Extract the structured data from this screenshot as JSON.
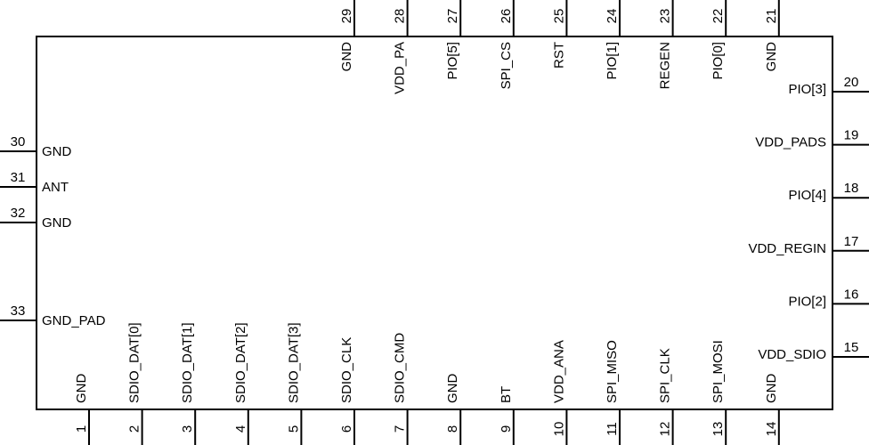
{
  "bottom_pins": [
    {
      "number": 1,
      "label": "GND"
    },
    {
      "number": 2,
      "label": "SDIO_DAT[0]"
    },
    {
      "number": 3,
      "label": "SDIO_DAT[1]"
    },
    {
      "number": 4,
      "label": "SDIO_DAT[2]"
    },
    {
      "number": 5,
      "label": "SDIO_DAT[3]"
    },
    {
      "number": 6,
      "label": "SDIO_CLK"
    },
    {
      "number": 7,
      "label": "SDIO_CMD"
    },
    {
      "number": 8,
      "label": "GND"
    },
    {
      "number": 9,
      "label": "BT"
    },
    {
      "number": 10,
      "label": "VDD_ANA"
    },
    {
      "number": 11,
      "label": "SPI_MISO"
    },
    {
      "number": 12,
      "label": "SPI_CLK"
    },
    {
      "number": 13,
      "label": "SPI_MOSI"
    },
    {
      "number": 14,
      "label": "GND"
    }
  ],
  "right_pins": [
    {
      "number": 15,
      "label": "VDD_SDIO"
    },
    {
      "number": 16,
      "label": "PIO[2]"
    },
    {
      "number": 17,
      "label": "VDD_REGIN"
    },
    {
      "number": 18,
      "label": "PIO[4]"
    },
    {
      "number": 19,
      "label": "VDD_PADS"
    },
    {
      "number": 20,
      "label": "PIO[3]"
    }
  ],
  "top_pins": [
    {
      "number": 21,
      "label": "GND"
    },
    {
      "number": 22,
      "label": "PIO[0]"
    },
    {
      "number": 23,
      "label": "REGEN"
    },
    {
      "number": 24,
      "label": "PIO[1]"
    },
    {
      "number": 25,
      "label": "RST"
    },
    {
      "number": 26,
      "label": "SPI_CS"
    },
    {
      "number": 27,
      "label": "PIO[5]"
    },
    {
      "number": 28,
      "label": "VDD_PA"
    },
    {
      "number": 29,
      "label": "GND"
    }
  ],
  "left_pins": [
    {
      "number": 30,
      "label": "GND"
    },
    {
      "number": 31,
      "label": "ANT"
    },
    {
      "number": 32,
      "label": "GND"
    },
    {
      "number": 33,
      "label": "GND_PAD"
    }
  ]
}
